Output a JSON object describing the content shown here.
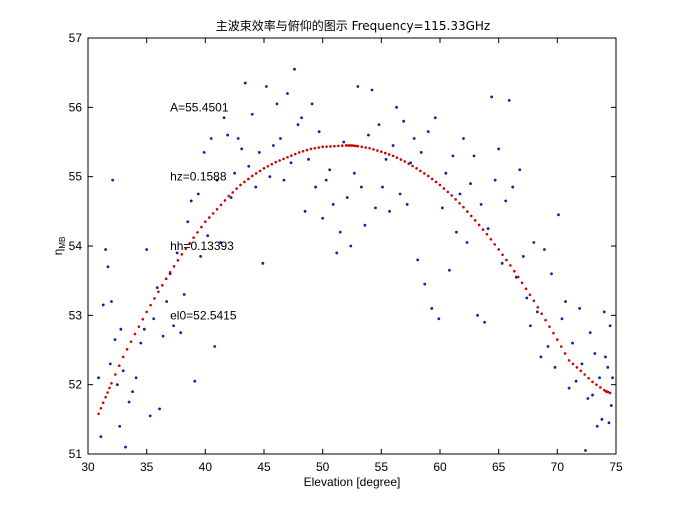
{
  "chart_data": {
    "type": "scatter",
    "title": "主波束效率与俯仰的图示 Frequency=115.33GHz",
    "xlabel": "Elevation [degree]",
    "ylabel_main": "η",
    "ylabel_sub": "MB",
    "xlim": [
      30,
      75
    ],
    "ylim": [
      51,
      57
    ],
    "xticks": [
      "30",
      "35",
      "40",
      "45",
      "50",
      "55",
      "60",
      "65",
      "70",
      "75"
    ],
    "yticks": [
      "51",
      "52",
      "53",
      "54",
      "55",
      "56",
      "57"
    ],
    "grid": false,
    "annotations": [
      {
        "text": "A=55.4501",
        "x": 37.0,
        "y": 56.0
      },
      {
        "text": "hz=0.1588",
        "x": 37.0,
        "y": 55.0
      },
      {
        "text": "hh=0.13393",
        "x": 37.0,
        "y": 54.0
      },
      {
        "text": "el0=52.5415",
        "x": 37.0,
        "y": 53.0
      }
    ],
    "fit": {
      "color": "#cc0000",
      "x": [
        30.9,
        31.5,
        32.0,
        33.0,
        34.0,
        35.0,
        36.0,
        37.0,
        38.0,
        39.0,
        40.0,
        41.0,
        42.0,
        43.0,
        44.0,
        45.0,
        46.0,
        47.0,
        48.0,
        49.0,
        50.0,
        51.0,
        52.0,
        52.5,
        53.0,
        54.0,
        55.0,
        56.0,
        57.0,
        58.0,
        59.0,
        60.0,
        61.0,
        62.0,
        63.0,
        64.0,
        65.0,
        66.0,
        67.0,
        68.0,
        69.0,
        70.0,
        71.0,
        72.0,
        73.0,
        74.0,
        74.5
      ],
      "y": [
        51.58,
        51.82,
        52.02,
        52.4,
        52.73,
        53.05,
        53.34,
        53.62,
        53.88,
        54.12,
        54.35,
        54.53,
        54.72,
        54.88,
        55.01,
        55.12,
        55.21,
        55.28,
        55.35,
        55.4,
        55.43,
        55.44,
        55.45,
        55.45,
        55.44,
        55.41,
        55.36,
        55.3,
        55.22,
        55.12,
        55.01,
        54.88,
        54.73,
        54.56,
        54.37,
        54.17,
        53.95,
        53.72,
        53.47,
        53.21,
        52.93,
        52.65,
        52.35,
        52.2,
        52.04,
        51.92,
        51.88
      ]
    },
    "measurements": {
      "color": "#1a1aaa",
      "points": [
        [
          30.9,
          52.1
        ],
        [
          31.1,
          51.25
        ],
        [
          31.3,
          53.15
        ],
        [
          31.5,
          53.95
        ],
        [
          31.7,
          53.7
        ],
        [
          31.9,
          52.3
        ],
        [
          32.0,
          53.2
        ],
        [
          32.1,
          54.95
        ],
        [
          32.3,
          52.65
        ],
        [
          32.5,
          52.0
        ],
        [
          32.7,
          51.4
        ],
        [
          32.8,
          52.8
        ],
        [
          33.0,
          52.2
        ],
        [
          33.2,
          51.1
        ],
        [
          33.5,
          51.75
        ],
        [
          33.8,
          51.9
        ],
        [
          34.1,
          52.1
        ],
        [
          34.5,
          52.6
        ],
        [
          34.8,
          52.8
        ],
        [
          35.0,
          53.95
        ],
        [
          35.3,
          51.55
        ],
        [
          35.6,
          52.95
        ],
        [
          35.9,
          53.4
        ],
        [
          36.1,
          51.65
        ],
        [
          36.4,
          52.7
        ],
        [
          36.7,
          53.2
        ],
        [
          37.0,
          53.6
        ],
        [
          37.3,
          52.85
        ],
        [
          37.6,
          53.9
        ],
        [
          37.9,
          52.75
        ],
        [
          38.2,
          53.3
        ],
        [
          38.5,
          54.35
        ],
        [
          38.8,
          54.65
        ],
        [
          39.1,
          52.05
        ],
        [
          39.4,
          54.75
        ],
        [
          39.6,
          53.85
        ],
        [
          39.9,
          55.35
        ],
        [
          40.2,
          54.15
        ],
        [
          40.5,
          55.55
        ],
        [
          40.8,
          52.55
        ],
        [
          41.0,
          54.95
        ],
        [
          41.3,
          54.05
        ],
        [
          41.6,
          55.85
        ],
        [
          41.9,
          55.6
        ],
        [
          42.2,
          54.7
        ],
        [
          42.5,
          55.05
        ],
        [
          42.8,
          55.55
        ],
        [
          43.1,
          55.4
        ],
        [
          43.4,
          56.35
        ],
        [
          43.7,
          55.15
        ],
        [
          44.0,
          55.9
        ],
        [
          44.3,
          54.85
        ],
        [
          44.6,
          55.35
        ],
        [
          44.9,
          53.75
        ],
        [
          45.2,
          56.3
        ],
        [
          45.5,
          55.0
        ],
        [
          45.8,
          55.45
        ],
        [
          46.1,
          56.05
        ],
        [
          46.4,
          55.55
        ],
        [
          46.7,
          54.95
        ],
        [
          47.0,
          56.2
        ],
        [
          47.3,
          55.2
        ],
        [
          47.6,
          56.55
        ],
        [
          47.9,
          55.75
        ],
        [
          48.2,
          55.85
        ],
        [
          48.5,
          54.5
        ],
        [
          48.8,
          55.25
        ],
        [
          49.1,
          56.05
        ],
        [
          49.4,
          54.85
        ],
        [
          49.7,
          55.65
        ],
        [
          50.0,
          54.4
        ],
        [
          50.3,
          54.95
        ],
        [
          50.6,
          55.1
        ],
        [
          50.9,
          54.6
        ],
        [
          51.2,
          53.9
        ],
        [
          51.5,
          54.2
        ],
        [
          51.8,
          55.5
        ],
        [
          52.1,
          54.7
        ],
        [
          52.4,
          54.0
        ],
        [
          52.7,
          55.05
        ],
        [
          53.0,
          56.3
        ],
        [
          53.3,
          54.85
        ],
        [
          53.6,
          54.3
        ],
        [
          53.9,
          55.6
        ],
        [
          54.2,
          56.25
        ],
        [
          54.5,
          54.55
        ],
        [
          54.8,
          55.75
        ],
        [
          55.1,
          54.85
        ],
        [
          55.4,
          55.25
        ],
        [
          55.7,
          54.5
        ],
        [
          56.0,
          55.45
        ],
        [
          56.3,
          56.0
        ],
        [
          56.6,
          54.75
        ],
        [
          56.9,
          55.8
        ],
        [
          57.2,
          54.6
        ],
        [
          57.5,
          55.2
        ],
        [
          57.8,
          55.55
        ],
        [
          58.1,
          53.8
        ],
        [
          58.4,
          55.35
        ],
        [
          58.7,
          53.45
        ],
        [
          59.0,
          55.65
        ],
        [
          59.3,
          53.1
        ],
        [
          59.6,
          55.85
        ],
        [
          59.9,
          52.95
        ],
        [
          60.2,
          54.55
        ],
        [
          60.5,
          55.05
        ],
        [
          60.8,
          53.65
        ],
        [
          61.1,
          55.3
        ],
        [
          61.4,
          54.2
        ],
        [
          61.7,
          54.75
        ],
        [
          62.0,
          55.55
        ],
        [
          62.3,
          54.05
        ],
        [
          62.6,
          54.9
        ],
        [
          62.9,
          55.3
        ],
        [
          63.2,
          53.0
        ],
        [
          63.5,
          54.6
        ],
        [
          63.8,
          52.9
        ],
        [
          64.1,
          54.25
        ],
        [
          64.4,
          56.15
        ],
        [
          64.7,
          54.95
        ],
        [
          65.0,
          55.4
        ],
        [
          65.3,
          53.75
        ],
        [
          65.6,
          54.65
        ],
        [
          65.9,
          56.1
        ],
        [
          66.2,
          54.85
        ],
        [
          66.5,
          53.55
        ],
        [
          66.8,
          55.1
        ],
        [
          67.1,
          53.85
        ],
        [
          67.4,
          53.25
        ],
        [
          67.7,
          52.85
        ],
        [
          68.0,
          54.05
        ],
        [
          68.3,
          53.05
        ],
        [
          68.6,
          52.4
        ],
        [
          68.9,
          53.95
        ],
        [
          69.2,
          52.55
        ],
        [
          69.5,
          53.6
        ],
        [
          69.8,
          52.25
        ],
        [
          70.1,
          54.45
        ],
        [
          70.4,
          52.95
        ],
        [
          70.7,
          53.2
        ],
        [
          71.0,
          51.95
        ],
        [
          71.3,
          52.6
        ],
        [
          71.6,
          52.05
        ],
        [
          71.9,
          53.1
        ],
        [
          72.1,
          52.3
        ],
        [
          72.4,
          51.05
        ],
        [
          72.6,
          51.8
        ],
        [
          72.8,
          52.75
        ],
        [
          73.0,
          51.85
        ],
        [
          73.2,
          52.45
        ],
        [
          73.4,
          51.4
        ],
        [
          73.6,
          52.1
        ],
        [
          73.8,
          51.5
        ],
        [
          74.0,
          53.05
        ],
        [
          74.1,
          52.4
        ],
        [
          74.2,
          51.9
        ],
        [
          74.3,
          52.25
        ],
        [
          74.4,
          51.45
        ],
        [
          74.5,
          52.85
        ],
        [
          74.6,
          51.7
        ],
        [
          74.7,
          52.1
        ]
      ]
    }
  }
}
